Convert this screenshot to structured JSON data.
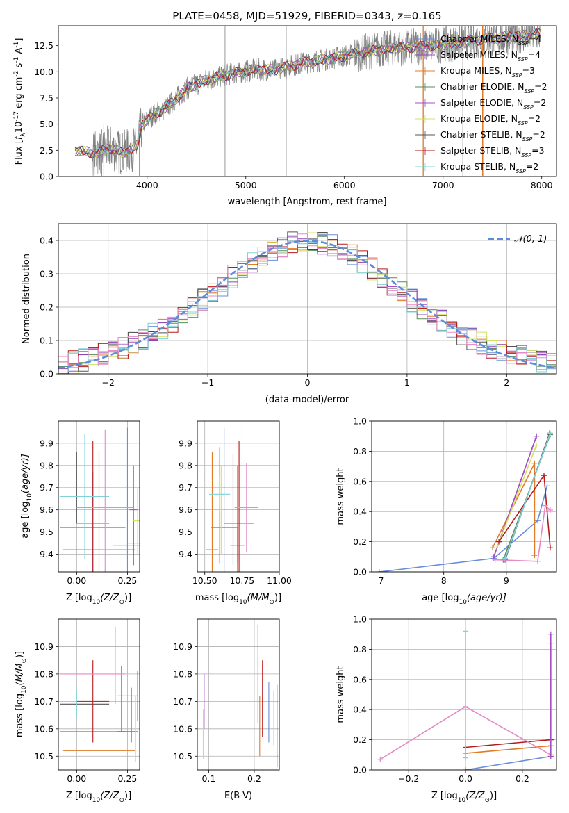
{
  "colors": {
    "Chabrier MILES": "#6a8edb",
    "Salpeter MILES": "#8e44ad",
    "Kroupa MILES": "#e07b28",
    "Chabrier ELODIE": "#5a8a5a",
    "Salpeter ELODIE": "#a64fc4",
    "Kroupa ELODIE": "#d4e060",
    "Chabrier STELIB": "#555555",
    "Salpeter STELIB": "#b51a1a",
    "Kroupa STELIB": "#7fd3d8",
    "pink": "#e58ac6",
    "gaussian": "#5b8bdb",
    "data": "#808080"
  },
  "chart_data": [
    {
      "id": "spectrum",
      "type": "line",
      "title": "PLATE=0458, MJD=51929, FIBERID=0343, z=0.165",
      "xlabel": "wavelength [Angstrom, rest frame]",
      "ylabel_parts": [
        "Flux [",
        "f",
        "λ",
        "10",
        "-17",
        " erg cm",
        "-2",
        " s",
        "-1",
        " A",
        "-1",
        "]"
      ],
      "xlim": [
        3100,
        8150
      ],
      "ylim": [
        0,
        14.4
      ],
      "xticks": [
        4000,
        5000,
        6000,
        7000,
        8000
      ],
      "yticks": [
        0.0,
        2.5,
        5.0,
        7.5,
        10.0,
        12.5
      ],
      "grid": false,
      "legend_position": "right",
      "series": [
        {
          "name": "Chabrier MILES",
          "nssp": "4"
        },
        {
          "name": "Salpeter MILES",
          "nssp": "4"
        },
        {
          "name": "Kroupa MILES",
          "nssp": "3"
        },
        {
          "name": "Chabrier ELODIE",
          "nssp": "2"
        },
        {
          "name": "Salpeter ELODIE",
          "nssp": "2"
        },
        {
          "name": "Kroupa ELODIE",
          "nssp": "2"
        },
        {
          "name": "Chabrier STELIB",
          "nssp": "2"
        },
        {
          "name": "Salpeter STELIB",
          "nssp": "3"
        },
        {
          "name": "Kroupa STELIB",
          "nssp": "2"
        }
      ],
      "continuum": {
        "x": [
          3270,
          3500,
          3620,
          3750,
          3900,
          3950,
          4050,
          4200,
          4400,
          4600,
          4850,
          5100,
          5300,
          5600,
          5900,
          6200,
          6500,
          6800,
          7100,
          7400,
          7700,
          8000
        ],
        "y": [
          2.5,
          2.2,
          2.8,
          2.2,
          2.9,
          5.0,
          5.8,
          6.6,
          8.4,
          9.2,
          9.8,
          10.2,
          10.2,
          10.9,
          11.3,
          11.9,
          12.3,
          12.4,
          12.7,
          13.1,
          13.4,
          13.6
        ]
      }
    },
    {
      "id": "residuals",
      "type": "step",
      "xlabel": "(data-model)/error",
      "ylabel": "Normed distribution",
      "xlim": [
        -2.5,
        2.5
      ],
      "ylim": [
        0,
        0.45
      ],
      "xticks": [
        -2,
        -1,
        0,
        1,
        2
      ],
      "yticks": [
        0.0,
        0.1,
        0.2,
        0.3,
        0.4
      ],
      "grid": true,
      "legend": "𝒩(0, 1)",
      "legend_position": "top-right",
      "bin_width": 0.1
    },
    {
      "id": "age_vs_Z",
      "type": "errorbar",
      "xlabel_parts": [
        "Z [log",
        "10",
        "(Z/Z",
        "⊙",
        ")]"
      ],
      "ylabel_parts": [
        "age  [log",
        "10",
        "(age/yr)]"
      ],
      "xlim": [
        -0.09,
        0.31
      ],
      "ylim": [
        9.32,
        10.0
      ],
      "xticks": [
        0.0,
        0.25
      ],
      "xtick_labels": [
        "0.00",
        "0.25"
      ],
      "yticks": [
        9.4,
        9.5,
        9.6,
        9.7,
        9.8,
        9.9
      ],
      "grid": true,
      "points": [
        {
          "x": 0.08,
          "y": 9.52,
          "xerr": 0.16,
          "yerr": 0.25,
          "color": "Chabrier MILES"
        },
        {
          "x": 0.25,
          "y": 9.44,
          "xerr": 0.07,
          "yerr": 0.53,
          "color": "Chabrier MILES"
        },
        {
          "x": 0.28,
          "y": 9.45,
          "xerr": 0.03,
          "yerr": 0.1,
          "color": "Salpeter MILES"
        },
        {
          "x": 0.11,
          "y": 9.42,
          "xerr": 0.18,
          "yerr": 0.45,
          "color": "Kroupa MILES"
        },
        {
          "x": 0.28,
          "y": 9.6,
          "xerr": 0.02,
          "yerr": 0.2,
          "color": "Salpeter ELODIE"
        },
        {
          "x": 0.3,
          "y": 9.55,
          "xerr": 0.02,
          "yerr": 0.15,
          "color": "Kroupa ELODIE"
        },
        {
          "x": 0.0,
          "y": 9.7,
          "xerr": 0.0,
          "yerr": 0.16,
          "color": "Chabrier STELIB"
        },
        {
          "x": 0.08,
          "y": 9.54,
          "xerr": 0.08,
          "yerr": 0.37,
          "color": "Salpeter STELIB"
        },
        {
          "x": 0.04,
          "y": 9.66,
          "xerr": 0.12,
          "yerr": 0.28,
          "color": "Kroupa STELIB"
        },
        {
          "x": 0.14,
          "y": 9.61,
          "xerr": 0.14,
          "yerr": 0.35,
          "color": "pink"
        }
      ]
    },
    {
      "id": "age_vs_mass",
      "type": "errorbar",
      "xlabel_parts": [
        "mass [log",
        "10",
        "(M/M",
        "⊙",
        ")]"
      ],
      "xlim": [
        10.45,
        11.0
      ],
      "ylim": [
        9.32,
        10.0
      ],
      "xticks": [
        10.5,
        10.75,
        11.0
      ],
      "xtick_labels": [
        "10.50",
        "10.75",
        "11.00"
      ],
      "yticks": [
        9.4,
        9.5,
        9.6,
        9.7,
        9.8,
        9.9
      ],
      "grid": true,
      "points": [
        {
          "x": 10.63,
          "y": 9.52,
          "xerr": 0.09,
          "yerr": 0.45,
          "color": "Chabrier MILES"
        },
        {
          "x": 10.72,
          "y": 9.44,
          "xerr": 0.05,
          "yerr": 0.08,
          "color": "Salpeter MILES"
        },
        {
          "x": 10.55,
          "y": 9.42,
          "xerr": 0.04,
          "yerr": 0.44,
          "color": "Kroupa MILES"
        },
        {
          "x": 10.6,
          "y": 9.62,
          "xerr": 0.0,
          "yerr": 0.26,
          "color": "Chabrier ELODIE"
        },
        {
          "x": 10.72,
          "y": 9.55,
          "xerr": 0.0,
          "yerr": 0.25,
          "color": "Salpeter ELODIE"
        },
        {
          "x": 10.61,
          "y": 9.6,
          "xerr": 0.0,
          "yerr": 0.2,
          "color": "Kroupa ELODIE"
        },
        {
          "x": 10.69,
          "y": 9.6,
          "xerr": 0.0,
          "yerr": 0.25,
          "color": "Chabrier STELIB"
        },
        {
          "x": 10.73,
          "y": 9.54,
          "xerr": 0.1,
          "yerr": 0.37,
          "color": "Salpeter STELIB"
        },
        {
          "x": 10.6,
          "y": 9.67,
          "xerr": 0.07,
          "yerr": 0.08,
          "color": "Kroupa STELIB"
        },
        {
          "x": 10.78,
          "y": 9.61,
          "xerr": 0.08,
          "yerr": 0.2,
          "color": "pink"
        }
      ]
    },
    {
      "id": "weight_vs_age",
      "type": "line",
      "xlabel_parts": [
        "age  [log",
        "10",
        "(age/yr)]"
      ],
      "ylabel": "mass weight",
      "xlim": [
        6.85,
        9.8
      ],
      "ylim": [
        0,
        1.0
      ],
      "xticks": [
        7,
        8,
        9
      ],
      "yticks": [
        0.0,
        0.2,
        0.4,
        0.6,
        0.8,
        1.0
      ],
      "grid": true,
      "series": [
        {
          "color": "Chabrier MILES",
          "x": [
            6.97,
            8.8,
            9.5,
            9.65
          ],
          "y": [
            0.0,
            0.09,
            0.34,
            0.57
          ]
        },
        {
          "color": "Salpeter MILES",
          "x": [
            8.8,
            9.48
          ],
          "y": [
            0.1,
            0.9
          ]
        },
        {
          "color": "Kroupa MILES",
          "x": [
            8.78,
            9.45,
            9.45
          ],
          "y": [
            0.16,
            0.72,
            0.11
          ]
        },
        {
          "color": "Chabrier ELODIE",
          "x": [
            8.95,
            9.7
          ],
          "y": [
            0.08,
            0.91
          ]
        },
        {
          "color": "Salpeter ELODIE",
          "x": [
            8.8,
            9.48
          ],
          "y": [
            0.1,
            0.9
          ]
        },
        {
          "color": "Kroupa ELODIE",
          "x": [
            8.85,
            9.48
          ],
          "y": [
            0.16,
            0.84
          ]
        },
        {
          "color": "Chabrier STELIB",
          "x": [
            8.98,
            9.69
          ],
          "y": [
            0.08,
            0.92
          ]
        },
        {
          "color": "Salpeter STELIB",
          "x": [
            8.88,
            9.6,
            9.7
          ],
          "y": [
            0.2,
            0.64,
            0.16
          ]
        },
        {
          "color": "Kroupa STELIB",
          "x": [
            8.98,
            9.7
          ],
          "y": [
            0.09,
            0.92
          ]
        },
        {
          "color": "pink",
          "x": [
            8.82,
            9.5,
            9.62,
            9.7
          ],
          "y": [
            0.08,
            0.07,
            0.44,
            0.41
          ]
        }
      ]
    },
    {
      "id": "mass_vs_Z",
      "type": "errorbar",
      "xlabel_parts": [
        "Z [log",
        "10",
        "(Z/Z",
        "⊙",
        ")]"
      ],
      "ylabel_parts": [
        "mass [log",
        "10",
        "(M/M",
        "⊙",
        ")]"
      ],
      "xlim": [
        -0.09,
        0.31
      ],
      "ylim": [
        10.45,
        11.0
      ],
      "xticks": [
        0.0,
        0.25
      ],
      "xtick_labels": [
        "0.00",
        "0.25"
      ],
      "yticks": [
        10.5,
        10.6,
        10.7,
        10.8,
        10.9
      ],
      "grid": true,
      "points": [
        {
          "x": 0.08,
          "y": 10.59,
          "xerr": 0.16,
          "yerr": 0.0,
          "color": "Chabrier MILES"
        },
        {
          "x": 0.22,
          "y": 10.71,
          "xerr": 0.0,
          "yerr": 0.12,
          "color": "Chabrier MILES"
        },
        {
          "x": 0.25,
          "y": 10.72,
          "xerr": 0.05,
          "yerr": 0.0,
          "color": "Salpeter MILES"
        },
        {
          "x": 0.11,
          "y": 10.52,
          "xerr": 0.18,
          "yerr": 0.0,
          "color": "Kroupa MILES"
        },
        {
          "x": 0.27,
          "y": 10.65,
          "xerr": 0.0,
          "yerr": 0.1,
          "color": "Kroupa MILES"
        },
        {
          "x": 0.25,
          "y": 10.59,
          "xerr": 0.05,
          "yerr": 0.0,
          "color": "Chabrier ELODIE"
        },
        {
          "x": 0.3,
          "y": 10.72,
          "xerr": 0.0,
          "yerr": 0.09,
          "color": "Salpeter ELODIE"
        },
        {
          "x": 0.29,
          "y": 10.6,
          "xerr": 0.0,
          "yerr": 0.12,
          "color": "Kroupa ELODIE"
        },
        {
          "x": 0.04,
          "y": 10.69,
          "xerr": 0.12,
          "yerr": 0.0,
          "color": "Chabrier STELIB"
        },
        {
          "x": 0.08,
          "y": 10.7,
          "xerr": 0.08,
          "yerr": 0.15,
          "color": "Salpeter STELIB"
        },
        {
          "x": 0.0,
          "y": 10.69,
          "xerr": 0.0,
          "yerr": 0.05,
          "color": "Kroupa STELIB"
        },
        {
          "x": 0.08,
          "y": 10.8,
          "xerr": 0.16,
          "yerr": 0.0,
          "color": "pink"
        },
        {
          "x": 0.19,
          "y": 10.83,
          "xerr": 0.0,
          "yerr": 0.14,
          "color": "pink"
        }
      ]
    },
    {
      "id": "mass_vs_ebv",
      "type": "errorbar",
      "xlabel": "E(B-V)",
      "xlim": [
        0.075,
        0.255
      ],
      "ylim": [
        10.45,
        11.0
      ],
      "xticks": [
        0.1,
        0.2
      ],
      "xtick_labels": [
        "0.1",
        "0.2"
      ],
      "yticks": [
        10.5,
        10.6,
        10.7,
        10.8,
        10.9
      ],
      "grid": true,
      "points": [
        {
          "x": 0.09,
          "y": 10.7,
          "xerr": 0.0,
          "yerr": 0.1,
          "color": "Salpeter ELODIE"
        },
        {
          "x": 0.088,
          "y": 10.58,
          "xerr": 0.0,
          "yerr": 0.09,
          "color": "Kroupa ELODIE"
        },
        {
          "x": 0.208,
          "y": 10.8,
          "xerr": 0.0,
          "yerr": 0.18,
          "color": "pink"
        },
        {
          "x": 0.212,
          "y": 10.61,
          "xerr": 0.0,
          "yerr": 0.11,
          "color": "Kroupa MILES"
        },
        {
          "x": 0.218,
          "y": 10.71,
          "xerr": 0.0,
          "yerr": 0.14,
          "color": "Salpeter STELIB"
        },
        {
          "x": 0.232,
          "y": 10.66,
          "xerr": 0.0,
          "yerr": 0.11,
          "color": "Chabrier MILES"
        },
        {
          "x": 0.243,
          "y": 10.64,
          "xerr": 0.0,
          "yerr": 0.1,
          "color": "Kroupa STELIB"
        },
        {
          "x": 0.25,
          "y": 10.61,
          "xerr": 0.0,
          "yerr": 0.15,
          "color": "Chabrier STELIB"
        }
      ]
    },
    {
      "id": "weight_vs_Z",
      "type": "line",
      "xlabel_parts": [
        "Z [log",
        "10",
        "(Z/Z",
        "⊙",
        ")]"
      ],
      "ylabel": "mass weight",
      "xlim": [
        -0.33,
        0.32
      ],
      "ylim": [
        0,
        1.0
      ],
      "xticks": [
        -0.2,
        0.0,
        0.2
      ],
      "xtick_labels": [
        "−0.2",
        "0.0",
        "0.2"
      ],
      "yticks": [
        0.0,
        0.2,
        0.4,
        0.6,
        0.8,
        1.0
      ],
      "grid": true,
      "series": [
        {
          "color": "Chabrier MILES",
          "x": [
            0.0,
            0.3
          ],
          "y": [
            0.0,
            0.09
          ]
        },
        {
          "color": "Kroupa MILES",
          "x": [
            0.0,
            0.3
          ],
          "y": [
            0.11,
            0.16
          ]
        },
        {
          "color": "Salpeter STELIB",
          "x": [
            0.0,
            0.3
          ],
          "y": [
            0.15,
            0.2
          ]
        },
        {
          "color": "pink",
          "x": [
            -0.3,
            0.0,
            0.3
          ],
          "y": [
            0.07,
            0.42,
            0.1
          ]
        },
        {
          "color": "Kroupa STELIB",
          "x": [
            0.0,
            0.0
          ],
          "y": [
            0.08,
            0.92
          ]
        },
        {
          "color": "Kroupa ELODIE",
          "x": [
            0.3,
            0.3
          ],
          "y": [
            0.1,
            0.84
          ]
        },
        {
          "color": "Salpeter ELODIE",
          "x": [
            0.3,
            0.3
          ],
          "y": [
            0.09,
            0.9
          ]
        }
      ]
    }
  ]
}
